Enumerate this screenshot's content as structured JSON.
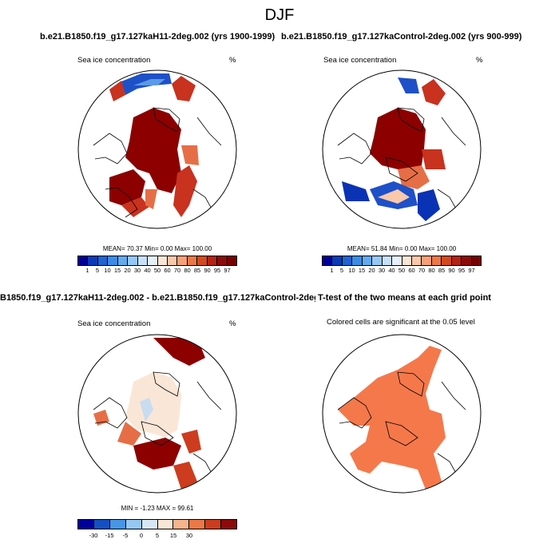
{
  "figure_title": "DJF",
  "panels": [
    {
      "title": "b.e21.B1850.f19_g17.127kaH11-2deg.002 (yrs 1900-1999)",
      "variable": "Sea ice concentration",
      "units": "%",
      "stats": {
        "mean": "70.37",
        "min": "0.00",
        "max": "100.00"
      },
      "stats_text": "MEAN=  70.37  Min=   0.00  Max= 100.00"
    },
    {
      "title": "b.e21.B1850.f19_g17.127kaControl-2deg.002 (yrs 900-999)",
      "variable": "Sea ice concentration",
      "units": "%",
      "stats": {
        "mean": "51.84",
        "min": "0.00",
        "max": "100.00"
      },
      "stats_text": "MEAN=  51.84  Min=   0.00  Max= 100.00"
    },
    {
      "title": "B1850.f19_g17.127kaH11-2deg.002 - b.e21.B1850.f19_g17.127kaControl-2deg.002",
      "variable": "Sea ice concentration",
      "units": "%",
      "stats": {
        "min": "-1.23",
        "max": "99.61"
      },
      "stats_text": "MIN =  -1.23 MAX =  99.61"
    },
    {
      "title": "T-test of the two means at each grid point",
      "subtitle": "Colored cells are significant at the 0.05 level"
    }
  ],
  "colorbar_abs": {
    "labels": [
      "1",
      "5",
      "10",
      "15",
      "20",
      "30",
      "40",
      "50",
      "60",
      "70",
      "80",
      "85",
      "90",
      "95",
      "97"
    ],
    "colors": [
      "#00009a",
      "#0a3cb8",
      "#1e64d2",
      "#3c8ce6",
      "#64aaf0",
      "#96c8f5",
      "#c8e1fa",
      "#e6f0fa",
      "#fae6d7",
      "#fac8aa",
      "#f5a078",
      "#eb7846",
      "#d24b1e",
      "#b42314",
      "#8c0a0a",
      "#780000"
    ]
  },
  "colorbar_diff": {
    "labels": [
      "-30",
      "-15",
      "-5",
      "0",
      "5",
      "15",
      "30"
    ],
    "colors": [
      "#00009a",
      "#1450c3",
      "#4696e6",
      "#96c8f5",
      "#d7e6f5",
      "#fae6d7",
      "#f5b48c",
      "#eb7846",
      "#cd3c1e",
      "#8c0a0a"
    ]
  },
  "ttest_color": "#f5784b",
  "map_colors": {
    "full_ice": "#8c0000",
    "high_ice": "#c8321e",
    "mid_ice": "#e66e46",
    "low_ice_blue": "#0a32b4",
    "mid_blue": "#3c7ddc",
    "diff_near_zero": "#fae6d7",
    "diff_light_blue": "#c8dcf0"
  }
}
